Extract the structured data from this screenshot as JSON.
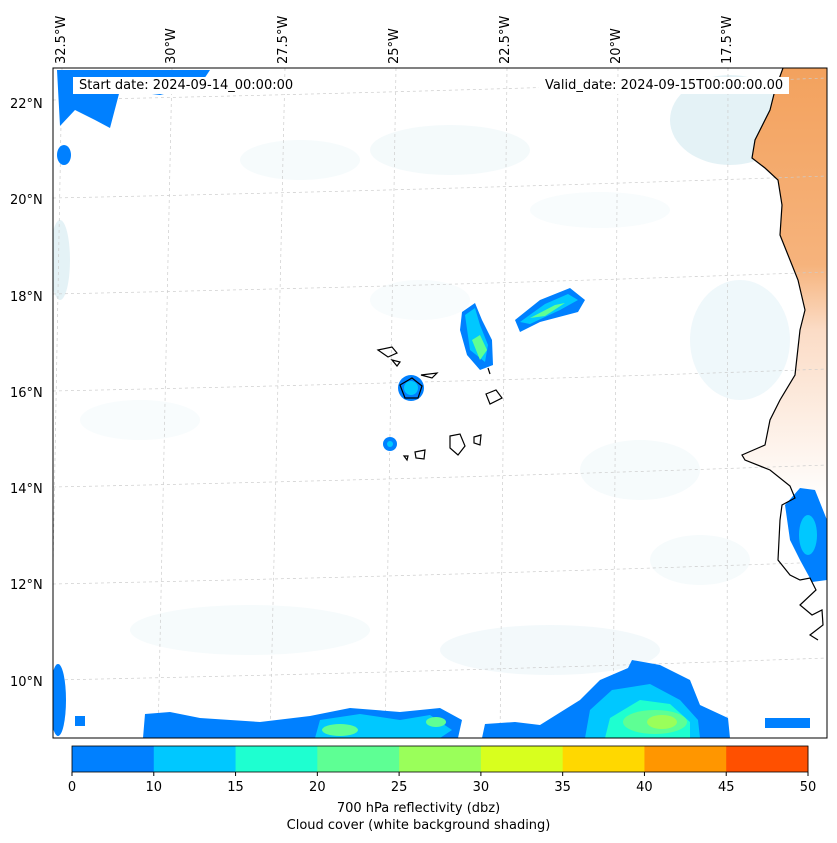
{
  "title_left": "Start date: 2024-09-14_00:00:00",
  "title_right": "Valid_date: 2024-09-15T00:00:00.00",
  "lat_labels": [
    "22°N",
    "20°N",
    "18°N",
    "16°N",
    "14°N",
    "12°N",
    "10°N"
  ],
  "lon_labels": [
    "32.5°W",
    "30°W",
    "27.5°W",
    "25°W",
    "22.5°W",
    "20°W",
    "17.5°W"
  ],
  "colorbar": {
    "ticks": [
      "0",
      "10",
      "15",
      "20",
      "25",
      "30",
      "35",
      "40",
      "45",
      "50"
    ],
    "colors": [
      "#0080ff",
      "#00c8ff",
      "#1effd0",
      "#5eff94",
      "#9aff5a",
      "#d8ff1e",
      "#ffd800",
      "#ff9600",
      "#ff5000"
    ],
    "label_line1": "700 hPa reflectivity (dbz)",
    "label_line2": "Cloud cover (white background shading)"
  },
  "colors": {
    "land": "#f3a25e",
    "cloud": "#cfe8ef",
    "coast": "#000000",
    "grid": "#cccccc"
  }
}
